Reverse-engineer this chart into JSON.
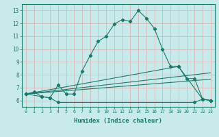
{
  "title": "",
  "xlabel": "Humidex (Indice chaleur)",
  "background_color": "#c8eaea",
  "grid_color": "#d8b8b8",
  "line_color": "#1a7a6a",
  "xlim": [
    -0.5,
    23.5
  ],
  "ylim": [
    5.5,
    13.5
  ],
  "xticks": [
    0,
    1,
    2,
    3,
    4,
    5,
    6,
    7,
    8,
    9,
    10,
    11,
    12,
    13,
    14,
    15,
    16,
    17,
    18,
    19,
    20,
    21,
    22,
    23
  ],
  "yticks": [
    6,
    7,
    8,
    9,
    10,
    11,
    12,
    13
  ],
  "series0_x": [
    0,
    1,
    2,
    3,
    4,
    5,
    6,
    7,
    8,
    9,
    10,
    11,
    12,
    13,
    14,
    15,
    16,
    17,
    18,
    19,
    22,
    23
  ],
  "series0_y": [
    6.5,
    6.65,
    6.3,
    6.2,
    7.2,
    6.5,
    6.5,
    8.3,
    9.5,
    10.6,
    11.0,
    11.95,
    12.3,
    12.15,
    13.0,
    12.4,
    11.6,
    10.0,
    8.65,
    8.65,
    6.1,
    6.0
  ],
  "series1_x": [
    0,
    2,
    3,
    4,
    21,
    22,
    23
  ],
  "series1_y": [
    6.5,
    6.3,
    6.2,
    5.85,
    5.85,
    6.1,
    6.0
  ],
  "series2_x": [
    0,
    19,
    20,
    21,
    22,
    23
  ],
  "series2_y": [
    6.5,
    8.65,
    7.7,
    7.7,
    6.1,
    6.0
  ],
  "series3_x": [
    0,
    23
  ],
  "series3_y": [
    6.5,
    8.15
  ],
  "series4_x": [
    0,
    23
  ],
  "series4_y": [
    6.5,
    7.65
  ]
}
